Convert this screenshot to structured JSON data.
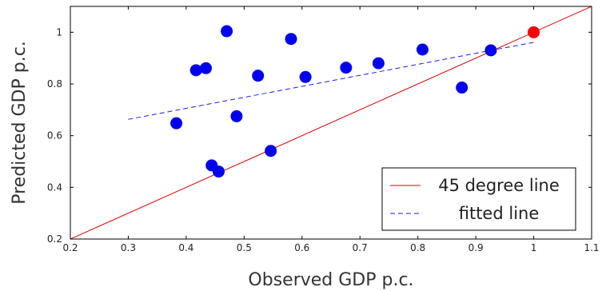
{
  "chart_data": {
    "type": "scatter",
    "xlabel": "Observed GDP p.c.",
    "ylabel": "Predicted GDP p.c.",
    "xlim": [
      0.2,
      1.1
    ],
    "ylim": [
      0.2,
      1.1
    ],
    "x_ticks": [
      0.2,
      0.3,
      0.4,
      0.5,
      0.6,
      0.7,
      0.8,
      0.9,
      1.0,
      1.1
    ],
    "x_tick_labels": [
      "0.2",
      "0.3",
      "0.4",
      "0.5",
      "0.6",
      "0.7",
      "0.8",
      "0.9",
      "1",
      "1.1"
    ],
    "y_ticks": [
      0.2,
      0.4,
      0.6,
      0.8,
      1.0
    ],
    "y_tick_labels": [
      "0.2",
      "0.4",
      "0.6",
      "0.8",
      "1"
    ],
    "grid": false,
    "legend_position": "bottom-right",
    "points": [
      {
        "x": 0.383,
        "y": 0.648,
        "color": "#0000ee"
      },
      {
        "x": 0.417,
        "y": 0.853,
        "color": "#0000ee"
      },
      {
        "x": 0.434,
        "y": 0.861,
        "color": "#0000ee"
      },
      {
        "x": 0.444,
        "y": 0.485,
        "color": "#0000ee"
      },
      {
        "x": 0.456,
        "y": 0.461,
        "color": "#0000ee"
      },
      {
        "x": 0.47,
        "y": 1.004,
        "color": "#0000ee"
      },
      {
        "x": 0.487,
        "y": 0.675,
        "color": "#0000ee"
      },
      {
        "x": 0.524,
        "y": 0.832,
        "color": "#0000ee"
      },
      {
        "x": 0.546,
        "y": 0.541,
        "color": "#0000ee"
      },
      {
        "x": 0.581,
        "y": 0.974,
        "color": "#0000ee"
      },
      {
        "x": 0.606,
        "y": 0.827,
        "color": "#0000ee"
      },
      {
        "x": 0.676,
        "y": 0.863,
        "color": "#0000ee"
      },
      {
        "x": 0.732,
        "y": 0.88,
        "color": "#0000ee"
      },
      {
        "x": 0.808,
        "y": 0.933,
        "color": "#0000ee"
      },
      {
        "x": 0.876,
        "y": 0.786,
        "color": "#0000ee"
      },
      {
        "x": 0.926,
        "y": 0.93,
        "color": "#0000ee"
      },
      {
        "x": 1.0,
        "y": 1.0,
        "color": "#ff0000"
      }
    ],
    "series": [
      {
        "name": "45 degree line",
        "color": "#dd0000",
        "style": "solid",
        "x": [
          0.2,
          1.1
        ],
        "y": [
          0.2,
          1.1
        ]
      },
      {
        "name": "fitted line",
        "color": "#1a1aee",
        "style": "dashed",
        "x": [
          0.3,
          1.0
        ],
        "y": [
          0.663,
          0.961
        ]
      }
    ]
  }
}
